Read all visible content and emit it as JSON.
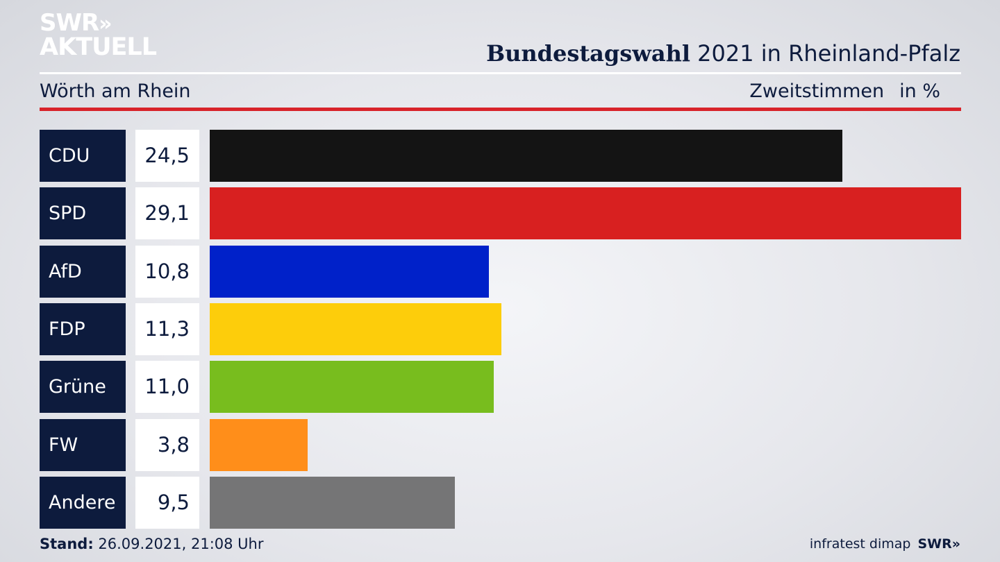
{
  "header": {
    "logo_line1": "SWR",
    "logo_arrows": "»",
    "logo_line2": "AKTUELL",
    "title_bold": "Bundestagswahl",
    "title_rest": " 2021 in Rheinland-Pfalz",
    "location": "Wörth am Rhein",
    "metric": "Zweitstimmen",
    "unit": "in %"
  },
  "chart_data": {
    "type": "bar",
    "orientation": "horizontal",
    "categories": [
      "CDU",
      "SPD",
      "AfD",
      "FDP",
      "Grüne",
      "FW",
      "Andere"
    ],
    "values": [
      24.5,
      29.1,
      10.8,
      11.3,
      11.0,
      3.8,
      9.5
    ],
    "value_labels": [
      "24,5",
      "29,1",
      "10,8",
      "11,3",
      "11,0",
      "3,8",
      "9,5"
    ],
    "colors": [
      "#141414",
      "#d82020",
      "#0021c9",
      "#fdcd0b",
      "#78bd1e",
      "#ff8e1a",
      "#757576"
    ],
    "xlim": [
      0,
      29.1
    ],
    "grid": false,
    "legend": "none"
  },
  "footer": {
    "stand_label": "Stand:",
    "stand_value": " 26.09.2021, 21:08 Uhr",
    "source": "infratest dimap",
    "brand": "SWR»"
  }
}
